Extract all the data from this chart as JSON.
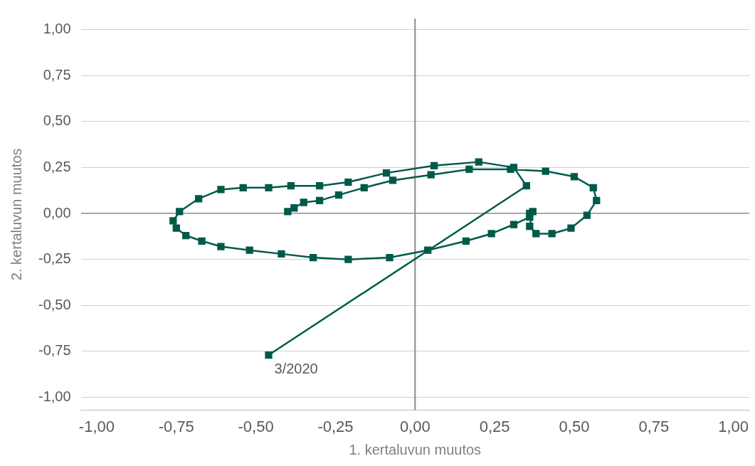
{
  "chart_data": {
    "type": "line",
    "xlabel": "1. kertaluvun muutos",
    "ylabel": "2. kertaluvun muutos",
    "xlim": [
      -1.05,
      1.05
    ],
    "ylim": [
      -1.07,
      1.06
    ],
    "xticks": [
      {
        "value": -1,
        "label": "-1,00"
      },
      {
        "value": -0.75,
        "label": "-0,75"
      },
      {
        "value": -0.5,
        "label": "-0,50"
      },
      {
        "value": -0.25,
        "label": "-0,25"
      },
      {
        "value": 0,
        "label": "0,00"
      },
      {
        "value": 0.25,
        "label": "0,25"
      },
      {
        "value": 0.5,
        "label": "0,50"
      },
      {
        "value": 0.75,
        "label": "0,75"
      },
      {
        "value": 1,
        "label": "1,00"
      }
    ],
    "yticks": [
      {
        "value": -1,
        "label": "-1,00"
      },
      {
        "value": -0.75,
        "label": "-0,75"
      },
      {
        "value": -0.5,
        "label": "-0,50"
      },
      {
        "value": -0.25,
        "label": "-0,25"
      },
      {
        "value": 0,
        "label": "0,00"
      },
      {
        "value": 0.25,
        "label": "0,25"
      },
      {
        "value": 0.5,
        "label": "0,50"
      },
      {
        "value": 0.75,
        "label": "0,75"
      },
      {
        "value": 1,
        "label": "1,00"
      }
    ],
    "grid": "y",
    "legend": false,
    "marker": "square",
    "line_style": "solid",
    "ref_lines": [
      {
        "axis": "x",
        "value": 0,
        "color": "#8c8c8c"
      }
    ],
    "annotations": [
      {
        "text": "3/2020",
        "x": -0.46,
        "y": -0.77
      }
    ],
    "series": [
      {
        "color": "#005a4a",
        "x": [
          -0.4,
          -0.38,
          -0.35,
          -0.3,
          -0.24,
          -0.16,
          -0.07,
          0.05,
          0.17,
          0.3,
          0.41,
          0.5,
          0.56,
          0.57,
          0.54,
          0.49,
          0.43,
          0.38,
          0.36,
          0.37,
          0.36,
          0.36,
          0.31,
          0.24,
          0.16,
          0.04,
          -0.08,
          -0.21,
          -0.32,
          -0.42,
          -0.52,
          -0.61,
          -0.67,
          -0.72,
          -0.75,
          -0.76,
          -0.74,
          -0.68,
          -0.61,
          -0.54,
          -0.46,
          -0.39,
          -0.3,
          -0.21,
          -0.09,
          0.06,
          0.2,
          0.31,
          0.35,
          -0.46
        ],
        "values": [
          0.01,
          0.03,
          0.06,
          0.07,
          0.1,
          0.14,
          0.18,
          0.21,
          0.24,
          0.24,
          0.23,
          0.2,
          0.14,
          0.07,
          -0.01,
          -0.08,
          -0.11,
          -0.11,
          -0.07,
          0.01,
          0.0,
          -0.02,
          -0.06,
          -0.11,
          -0.15,
          -0.2,
          -0.24,
          -0.25,
          -0.24,
          -0.22,
          -0.2,
          -0.18,
          -0.15,
          -0.12,
          -0.08,
          -0.04,
          0.01,
          0.08,
          0.13,
          0.14,
          0.14,
          0.15,
          0.15,
          0.17,
          0.22,
          0.26,
          0.28,
          0.25,
          0.15,
          -0.77
        ]
      }
    ]
  }
}
